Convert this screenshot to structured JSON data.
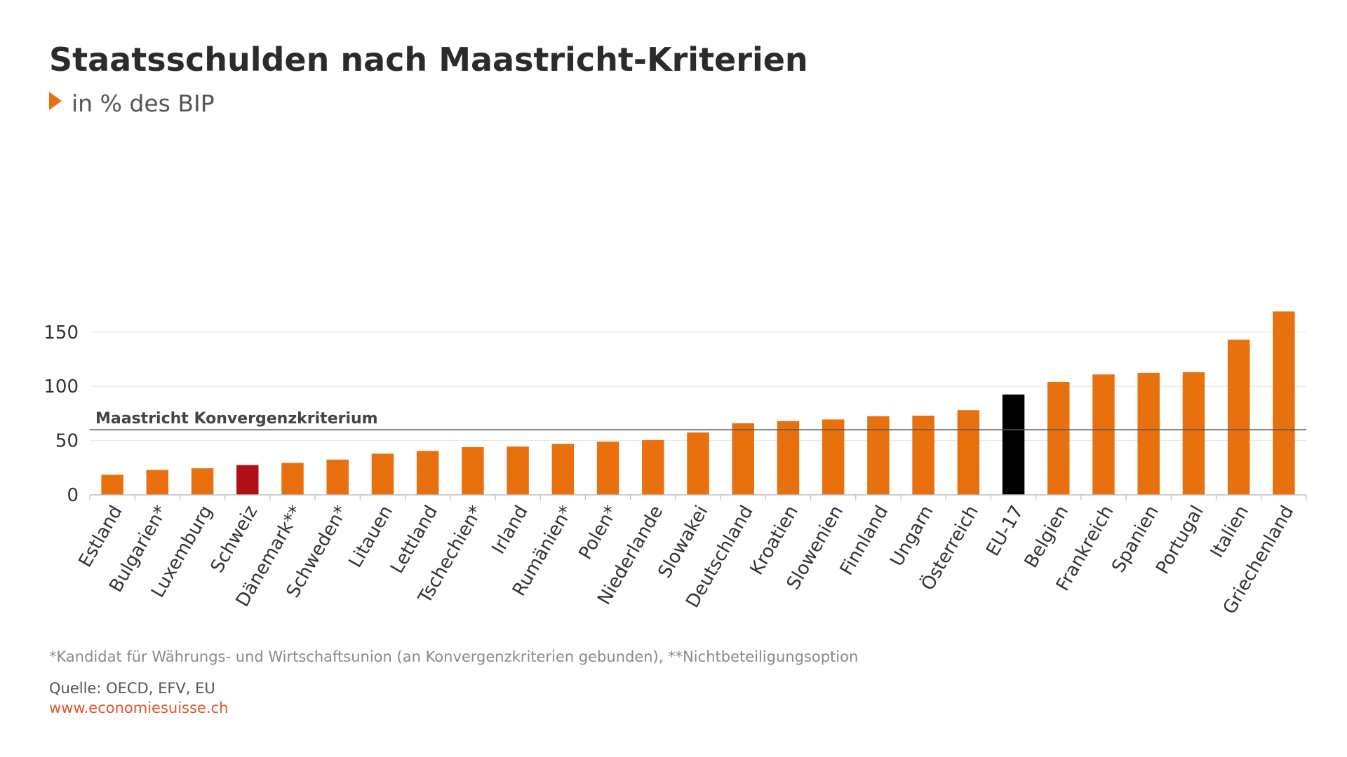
{
  "header": {
    "title": "Staatsschulden nach Maastricht-Kriterien",
    "subtitle": "in % des BIP"
  },
  "footer": {
    "footnote": "*Kandidat für Währungs- und Wirtschaftsunion (an Konvergenzkriterien gebunden), **Nichtbeteiligungsoption",
    "source": "Quelle: OECD, EFV, EU",
    "url": "www.economiesuisse.ch"
  },
  "colors": {
    "default": "#e8700f",
    "highlight_schweiz": "#b01116",
    "highlight_eu": "#000000",
    "accent": "#e8700f"
  },
  "chart_data": {
    "type": "bar",
    "title": "Staatsschulden nach Maastricht-Kriterien",
    "subtitle": "in % des BIP",
    "categories": [
      "Estland",
      "Bulgarien*",
      "Luxemburg",
      "Schweiz",
      "Dänemark**",
      "Schweden*",
      "Litauen",
      "Lettland",
      "Tschechien*",
      "Irland",
      "Rumänien*",
      "Polen*",
      "Niederlande",
      "Slowakei",
      "Deutschland",
      "Kroatien",
      "Slowenien",
      "Finnland",
      "Ungarn",
      "Österreich",
      "EU-17",
      "Belgien",
      "Frankreich",
      "Spanien",
      "Portugal",
      "Italien",
      "Griechenland"
    ],
    "values": [
      18.5,
      23,
      24.5,
      27.5,
      29.5,
      32.5,
      38,
      40.5,
      44,
      44.5,
      47,
      49,
      50.5,
      57.5,
      66,
      68,
      69.5,
      72.5,
      73,
      78,
      92.5,
      104,
      111,
      112.5,
      113,
      143,
      169
    ],
    "bar_colors": [
      "default",
      "default",
      "default",
      "highlight_schweiz",
      "default",
      "default",
      "default",
      "default",
      "default",
      "default",
      "default",
      "default",
      "default",
      "default",
      "default",
      "default",
      "default",
      "default",
      "default",
      "default",
      "highlight_eu",
      "default",
      "default",
      "default",
      "default",
      "default",
      "default"
    ],
    "ylim": [
      0,
      170
    ],
    "yticks": [
      0,
      50,
      100,
      150
    ],
    "reference_line": {
      "value": 60,
      "label": "Maastricht Konvergenzkriterium"
    },
    "grid": true,
    "xlabel": "",
    "ylabel": ""
  }
}
